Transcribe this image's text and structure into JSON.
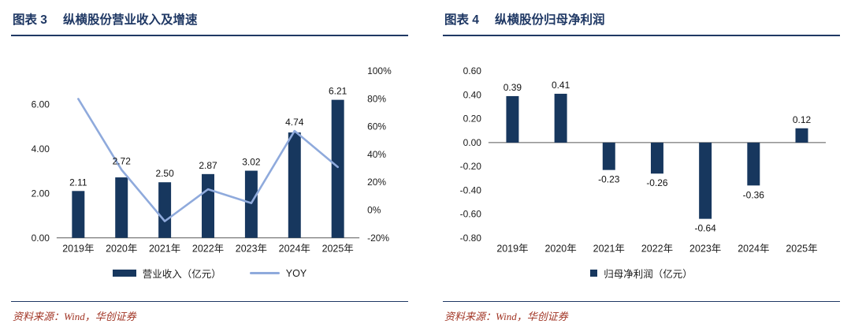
{
  "colors": {
    "navy": "#1F3864",
    "bar": "#17375E",
    "line": "#8FAADC",
    "axis": "#595959",
    "source": "#A13525"
  },
  "figure3": {
    "label": "图表 3",
    "title": "纵横股份营业收入及增速",
    "legend": [
      {
        "id": "revenue",
        "marker": "rect",
        "label": "营业收入（亿元）"
      },
      {
        "id": "yoy",
        "marker": "line",
        "label": "YOY"
      }
    ],
    "source": "资料来源：Wind，华创证券"
  },
  "figure4": {
    "label": "图表 4",
    "title": "纵横股份归母净利润",
    "legend": [
      {
        "id": "net-profit",
        "marker": "square",
        "label": "归母净利润（亿元）"
      }
    ],
    "source": "资料来源：Wind，华创证券"
  },
  "chart_data": [
    {
      "type": "bar+line",
      "title": "纵横股份营业收入及增速",
      "categories": [
        "2019年",
        "2020年",
        "2021年",
        "2022年",
        "2023年",
        "2024年",
        "2025年"
      ],
      "series": [
        {
          "name": "营业收入（亿元）",
          "type": "bar",
          "axis": "left",
          "values": [
            2.11,
            2.72,
            2.5,
            2.87,
            3.02,
            4.74,
            6.21
          ],
          "labels": [
            "2.11",
            "2.72",
            "2.50",
            "2.87",
            "3.02",
            "4.74",
            "6.21"
          ]
        },
        {
          "name": "YOY",
          "type": "line",
          "axis": "right",
          "values": [
            80,
            29,
            -8,
            15,
            5,
            57,
            31
          ]
        }
      ],
      "left_axis": {
        "min": 0,
        "max": 7.5,
        "ticks": [
          {
            "v": 0,
            "label": "0.00"
          },
          {
            "v": 2,
            "label": "2.00"
          },
          {
            "v": 4,
            "label": "4.00"
          },
          {
            "v": 6,
            "label": "6.00"
          }
        ]
      },
      "right_axis": {
        "min": -20,
        "max": 100,
        "ticks": [
          {
            "v": -20,
            "label": "-20%"
          },
          {
            "v": 0,
            "label": "0%"
          },
          {
            "v": 20,
            "label": "20%"
          },
          {
            "v": 40,
            "label": "40%"
          },
          {
            "v": 60,
            "label": "60%"
          },
          {
            "v": 80,
            "label": "80%"
          },
          {
            "v": 100,
            "label": "100%"
          }
        ]
      },
      "grid": false,
      "legend_position": "bottom"
    },
    {
      "type": "bar",
      "title": "纵横股份归母净利润",
      "categories": [
        "2019年",
        "2020年",
        "2021年",
        "2022年",
        "2023年",
        "2024年",
        "2025年"
      ],
      "series": [
        {
          "name": "归母净利润（亿元）",
          "type": "bar",
          "axis": "left",
          "values": [
            0.39,
            0.41,
            -0.23,
            -0.26,
            -0.64,
            -0.36,
            0.12
          ],
          "labels": [
            "0.39",
            "0.41",
            "-0.23",
            "-0.26",
            "-0.64",
            "-0.36",
            "0.12"
          ]
        }
      ],
      "left_axis": {
        "min": -0.8,
        "max": 0.6,
        "ticks": [
          {
            "v": 0.6,
            "label": "0.60"
          },
          {
            "v": 0.4,
            "label": "0.40"
          },
          {
            "v": 0.2,
            "label": "0.20"
          },
          {
            "v": 0,
            "label": "0.00"
          },
          {
            "v": -0.2,
            "label": "-0.20"
          },
          {
            "v": -0.4,
            "label": "-0.40"
          },
          {
            "v": -0.6,
            "label": "-0.60"
          },
          {
            "v": -0.8,
            "label": "-0.80"
          }
        ]
      },
      "grid": false,
      "legend_position": "bottom"
    }
  ]
}
